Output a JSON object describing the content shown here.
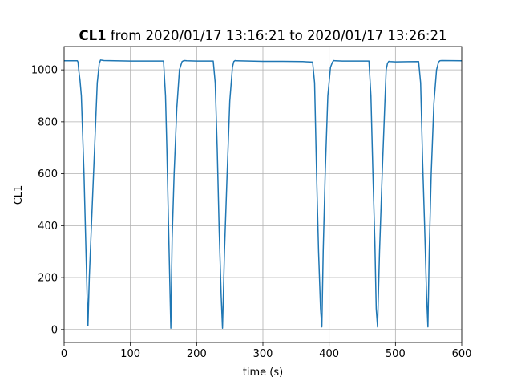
{
  "chart_data": {
    "type": "line",
    "title_bold": "CL1",
    "title_rest": " from 2020/01/17 13:16:21 to 2020/01/17 13:26:21",
    "xlabel": "time (s)",
    "ylabel": "CL1",
    "xlim": [
      0,
      600
    ],
    "ylim": [
      -50,
      1090
    ],
    "xticks": [
      0,
      100,
      200,
      300,
      400,
      500,
      600
    ],
    "yticks": [
      0,
      200,
      400,
      600,
      800,
      1000
    ],
    "grid": true,
    "color": "#1f77b4",
    "series": [
      {
        "x": [
          0,
          20,
          21,
          22,
          24,
          26,
          30,
          34,
          36,
          38,
          42,
          46,
          50,
          53,
          55,
          60,
          100,
          150,
          153,
          155,
          158,
          161,
          163,
          166,
          170,
          174,
          178,
          180,
          182,
          185,
          200,
          225,
          228,
          231,
          234,
          237,
          239,
          242,
          246,
          250,
          254,
          256,
          258,
          260,
          300,
          330,
          360,
          375,
          378,
          381,
          384,
          387,
          389,
          391,
          394,
          398,
          402,
          405,
          407,
          409,
          420,
          460,
          463,
          466,
          469,
          471,
          473,
          476,
          480,
          484,
          486,
          488,
          490,
          492,
          500,
          535,
          538,
          541,
          544,
          547,
          549,
          551,
          554,
          558,
          562,
          565,
          567,
          570,
          600
        ],
        "y": [
          1035,
          1035,
          1030,
          1000,
          960,
          900,
          600,
          200,
          15,
          200,
          450,
          700,
          950,
          1025,
          1038,
          1036,
          1034,
          1034,
          900,
          700,
          350,
          5,
          350,
          600,
          850,
          1000,
          1032,
          1035,
          1036,
          1035,
          1034,
          1034,
          950,
          700,
          380,
          130,
          5,
          300,
          600,
          880,
          1010,
          1032,
          1036,
          1035,
          1033,
          1033,
          1032,
          1030,
          950,
          600,
          300,
          80,
          10,
          300,
          600,
          900,
          1010,
          1030,
          1036,
          1035,
          1034,
          1034,
          900,
          600,
          330,
          80,
          10,
          300,
          600,
          870,
          1000,
          1025,
          1033,
          1032,
          1031,
          1032,
          950,
          650,
          400,
          130,
          10,
          300,
          600,
          870,
          1000,
          1030,
          1035,
          1036,
          1035
        ]
      }
    ]
  }
}
